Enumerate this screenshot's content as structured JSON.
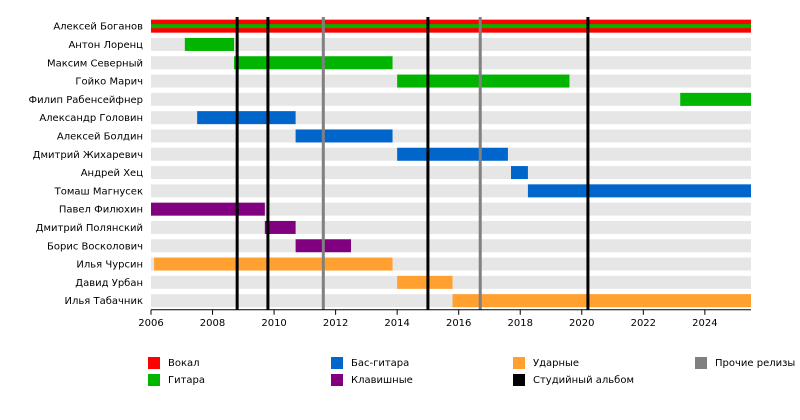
{
  "chart_data": {
    "type": "timeline",
    "x": {
      "min": 2006,
      "max": 2025.5,
      "ticks": [
        2006,
        2008,
        2010,
        2012,
        2014,
        2016,
        2018,
        2020,
        2022,
        2024
      ]
    },
    "members": [
      "Алексей Боганов",
      "Антон Лоренц",
      "Максим Северный",
      "Гойко Марич",
      "Филип Рабенсейфнер",
      "Александр Головин",
      "Алексей Болдин",
      "Дмитрий Жихаревич",
      "Андрей Хец",
      "Томаш Магнусек",
      "Павел Филюхин",
      "Дмитрий Полянский",
      "Борис Восколович",
      "Илья Чурсин",
      "Давид Урбан",
      "Илья Табачник"
    ],
    "roles": [
      {
        "key": "vocal",
        "label": "Вокал",
        "color": "#ff0000"
      },
      {
        "key": "guitar",
        "label": "Гитара",
        "color": "#00b400"
      },
      {
        "key": "bass",
        "label": "Бас-гитара",
        "color": "#0066cc"
      },
      {
        "key": "keys",
        "label": "Клавишные",
        "color": "#800080"
      },
      {
        "key": "drums",
        "label": "Ударные",
        "color": "#ffa030"
      },
      {
        "key": "album",
        "label": "Студийный альбом",
        "color": "#000000"
      },
      {
        "key": "other",
        "label": "Прочие релизы",
        "color": "#808080"
      }
    ],
    "bars": [
      {
        "member": 0,
        "role": "vocal",
        "start": 2006,
        "end": 2025.5
      },
      {
        "member": 0,
        "role": "guitar",
        "start": 2006,
        "end": 2025.5,
        "stripe": true
      },
      {
        "member": 1,
        "role": "guitar",
        "start": 2007.1,
        "end": 2008.7
      },
      {
        "member": 2,
        "role": "guitar",
        "start": 2008.7,
        "end": 2013.85
      },
      {
        "member": 3,
        "role": "guitar",
        "start": 2014.0,
        "end": 2019.6
      },
      {
        "member": 4,
        "role": "guitar",
        "start": 2023.2,
        "end": 2025.5
      },
      {
        "member": 5,
        "role": "bass",
        "start": 2007.5,
        "end": 2010.7
      },
      {
        "member": 6,
        "role": "bass",
        "start": 2010.7,
        "end": 2013.85
      },
      {
        "member": 7,
        "role": "bass",
        "start": 2014.0,
        "end": 2017.6
      },
      {
        "member": 8,
        "role": "bass",
        "start": 2017.7,
        "end": 2018.25
      },
      {
        "member": 9,
        "role": "bass",
        "start": 2018.25,
        "end": 2025.5
      },
      {
        "member": 10,
        "role": "keys",
        "start": 2006.0,
        "end": 2009.7
      },
      {
        "member": 11,
        "role": "keys",
        "start": 2009.7,
        "end": 2010.7
      },
      {
        "member": 12,
        "role": "keys",
        "start": 2010.7,
        "end": 2012.5
      },
      {
        "member": 13,
        "role": "drums",
        "start": 2006.1,
        "end": 2013.85
      },
      {
        "member": 14,
        "role": "drums",
        "start": 2014.0,
        "end": 2015.8
      },
      {
        "member": 15,
        "role": "drums",
        "start": 2015.8,
        "end": 2025.5
      }
    ],
    "events": [
      {
        "year": 2008.8,
        "role": "album"
      },
      {
        "year": 2009.8,
        "role": "album"
      },
      {
        "year": 2011.6,
        "role": "other"
      },
      {
        "year": 2015.0,
        "role": "album"
      },
      {
        "year": 2016.7,
        "role": "other"
      },
      {
        "year": 2020.2,
        "role": "album"
      }
    ]
  }
}
